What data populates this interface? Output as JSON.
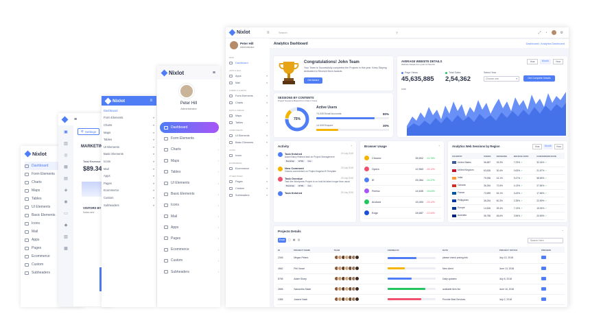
{
  "brand": "Nixlot",
  "s1": {
    "items": [
      "Dashboard",
      "Form Elements",
      "Charts",
      "Maps",
      "Tables",
      "UI Elements",
      "Basic Elements",
      "Icons",
      "Mail",
      "Apps",
      "Pages",
      "Ecommerce",
      "Custom",
      "Subheaders"
    ]
  },
  "s2": {
    "settings": "Settings",
    "marketing": "MARKETING",
    "total_revenue": "Total Revenue",
    "revenue_value": "$89.34",
    "visitors": "VISITORS BY",
    "notes": "Notes and"
  },
  "s3": {
    "items": [
      "Dashboard",
      "Form Elements",
      "Charts",
      "Maps",
      "Tables",
      "UI Elements",
      "Basic Elements",
      "Icons",
      "Mail",
      "Apps",
      "Pages",
      "Ecommerce",
      "Custom",
      "Subheaders"
    ]
  },
  "s4": {
    "user": "Peter Hill",
    "role": "Administrator",
    "items": [
      "Dashboard",
      "Form Elements",
      "Charts",
      "Maps",
      "Tables",
      "UI Elements",
      "Basic Elements",
      "Icons",
      "Mail",
      "Apps",
      "Pages",
      "Ecommerce",
      "Custom",
      "Subheaders"
    ]
  },
  "main": {
    "search": "Search",
    "user": "Peter Hill",
    "role": "Administrator",
    "nav": [
      {
        "section": "MAIN",
        "items": [
          "Dashboard"
        ]
      },
      {
        "section": "APPS & MAIL",
        "items": [
          "Apps",
          "Mail"
        ]
      },
      {
        "section": "FORMS & CHARTS",
        "items": [
          "Form Elements",
          "Charts"
        ]
      },
      {
        "section": "MAPS & TABLES",
        "items": [
          "Maps",
          "Tables"
        ]
      },
      {
        "section": "COMPONENTS",
        "items": [
          "UI Elements",
          "Basic Elements"
        ]
      },
      {
        "section": "ICONS",
        "items": [
          "Icons"
        ]
      },
      {
        "section": "ECOMMERCE",
        "items": [
          "Ecommerce"
        ]
      },
      {
        "section": "OTHER PAGES",
        "items": [
          "Pages",
          "Custom",
          "Subheaders"
        ]
      }
    ],
    "page_title": "Analytics Dashboard",
    "breadcrumb": "Dashboard / Analytics Dashboard",
    "congrats_title": "Congratulations! John Team",
    "congrats_text": "Your Team is Successfully completed the Projects in this year. Keep Staying dedicated to Receive More Awards",
    "get_award": "Get Award",
    "aws": {
      "title": "AVERAGE WEBSITE DETAILS",
      "subtitle": "Website Details from past 12 Months",
      "tabs": [
        "Year",
        "Month",
        "Year"
      ],
      "page_views_label": "Page Views",
      "page_views": "45,635,885",
      "total_sales_label": "Total Sales",
      "total_sales": "2,54,362",
      "select_year_label": "Select Year",
      "select_placeholder": "Choose one",
      "button": "Get Complete Details",
      "ymax": "100K"
    },
    "sessions": {
      "title": "SESSIONS BY CONTENTS",
      "subtitle": "Project Sessions Based From Past 3 Years",
      "pct": "75%",
      "active_users": "Active Users",
      "rows": [
        {
          "label": "74,039 Email Accounts",
          "value": "80%",
          "pct": 80,
          "color": "#4e7df5"
        },
        {
          "label": "14,928 Enquire",
          "value": "30%",
          "pct": 30,
          "color": "#f5b400"
        }
      ]
    },
    "activity": {
      "title": "Activity",
      "items": [
        {
          "title": "Task finished",
          "date": "29 July 2019",
          "desc": "Adam Barry finished task on Project Management",
          "tags": [
            "Bootstrap",
            "HTML",
            "Cos"
          ],
          "color": "#4e7df5"
        },
        {
          "title": "New Comment",
          "date": "29 July 2019",
          "desc": "Victoria commented on Project AngularJS Template",
          "tags": [],
          "color": "#f5b400"
        },
        {
          "title": "Task Overdue",
          "date": "29 July 2019",
          "desc": "Task the Wordpress Project is on hold its taken longer than usual",
          "tags": [
            "Bootstrap",
            "HTML",
            "Cos"
          ],
          "color": "#f0506e"
        },
        {
          "title": "Task finished",
          "date": "29 July 2019",
          "desc": "",
          "tags": [],
          "color": "#4e7df5"
        }
      ]
    },
    "browser": {
      "title": "Browser Usage",
      "rows": [
        {
          "name": "Chrome",
          "value": "35,502",
          "change": "12.76%",
          "up": true,
          "color": "#f5b400"
        },
        {
          "name": "Opera",
          "value": "12,563",
          "change": "15.12%",
          "up": false,
          "color": "#f0506e"
        },
        {
          "name": "IE",
          "value": "25,364",
          "change": "24.37%",
          "up": true,
          "color": "#4e7df5"
        },
        {
          "name": "Firefox",
          "value": "14,635",
          "change": "15.63%",
          "up": true,
          "color": "#a855f7"
        },
        {
          "name": "Android",
          "value": "15,453",
          "change": "23.12%",
          "up": false,
          "color": "#22c55e"
        },
        {
          "name": "Edge",
          "value": "28,687",
          "change": "12.54%",
          "up": false,
          "color": "#1d4ed8"
        }
      ]
    },
    "analytics": {
      "title": "Analytics Web Sessions by Region",
      "tabs": [
        "Year",
        "Month",
        "Year"
      ],
      "headers": [
        "COUNTRY",
        "USERS",
        "SESSIONS",
        "BOUNCE RATE",
        "CONVERSION RATE"
      ],
      "rows": [
        [
          "United States",
          "36,687",
          "33.3%",
          "7.23%",
          "32.04%"
        ],
        [
          "United Kingdom",
          "63,626",
          "30.4%",
          "0.63%",
          "21.67%"
        ],
        [
          "India",
          "75,936",
          "43.1%",
          "9.47%",
          "58.65%"
        ],
        [
          "Canada",
          "36,254",
          "72.6%",
          "4.13%",
          "27.84%"
        ],
        [
          "France",
          "73,559",
          "63.1%",
          "3.43%",
          "17.66%"
        ],
        [
          "Philippines",
          "38,254",
          "60.3%",
          "2.35%",
          "22.69%"
        ],
        [
          "Europe",
          "14,526",
          "39.4%",
          "7.13%",
          "15.94%"
        ],
        [
          "Australia",
          "36,756",
          "48.6%",
          "3.96%",
          "20.69%"
        ]
      ]
    },
    "projects": {
      "title": "Projects Details",
      "tool_labels": [
        "Excel"
      ],
      "search": "Search Here",
      "headers": [
        "ID",
        "PROJECT NAME",
        "TEAM",
        "FEEDBACK",
        "DATE",
        "PROJECT STATUS",
        "PREVIEW"
      ],
      "rows": [
        {
          "id": "2345",
          "name": "Megan Peters",
          "pct": 60,
          "color": "#4e7df5",
          "status": "please check pricing info",
          "date": "July 13, 2018"
        },
        {
          "id": "4562",
          "name": "Phil Vance",
          "pct": 35,
          "color": "#f5b400",
          "status": "New client",
          "date": "June 13, 2018"
        },
        {
          "id": "8765",
          "name": "Adam Sharp",
          "pct": 50,
          "color": "#4e7df5",
          "status": "Daily updates",
          "date": "July 8, 2018"
        },
        {
          "id": "2665",
          "name": "Samantha Slade",
          "pct": 78,
          "color": "#22c55e",
          "status": "available item list",
          "date": "June 16, 2018"
        },
        {
          "id": "1355",
          "name": "Joanne Nash",
          "pct": 70,
          "color": "#f0506e",
          "status": "Provide Best Services",
          "date": "July 2, 2018"
        }
      ]
    }
  }
}
